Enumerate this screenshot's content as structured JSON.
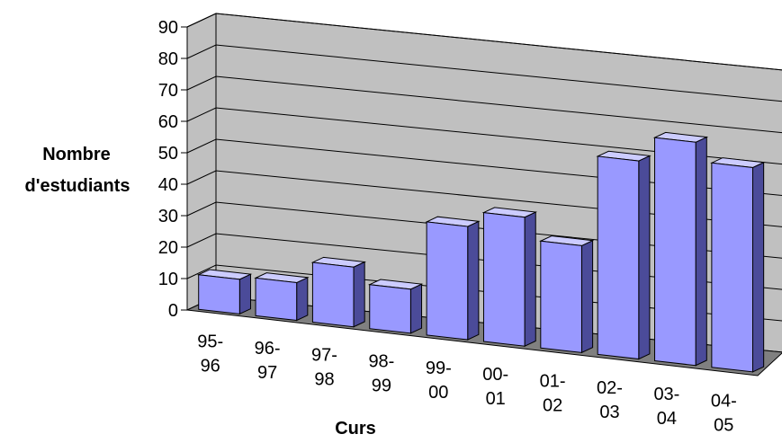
{
  "chart_data": {
    "type": "bar",
    "title": "",
    "xlabel": "Curs",
    "ylabel_lines": [
      "Nombre",
      "d'estudiants"
    ],
    "categories": [
      [
        "95-",
        "96"
      ],
      [
        "96-",
        "97"
      ],
      [
        "97-",
        "98"
      ],
      [
        "98-",
        "99"
      ],
      [
        "99-",
        "00"
      ],
      [
        "00-",
        "01"
      ],
      [
        "01-",
        "02"
      ],
      [
        "02-",
        "03"
      ],
      [
        "03-",
        "04"
      ],
      [
        "04-",
        "05"
      ]
    ],
    "values": [
      11,
      12,
      19,
      14,
      36,
      41,
      34,
      63,
      71,
      65
    ],
    "ylim": [
      0,
      90
    ],
    "yticks": [
      0,
      10,
      20,
      30,
      40,
      50,
      60,
      70,
      80,
      90
    ],
    "grid": true,
    "style": "3d-perspective",
    "colors": {
      "bar_front": "#9999ff",
      "bar_side": "#4b4b99",
      "bar_top": "#ccccff",
      "wall": "#c0c0c0",
      "floor": "#808080"
    }
  }
}
